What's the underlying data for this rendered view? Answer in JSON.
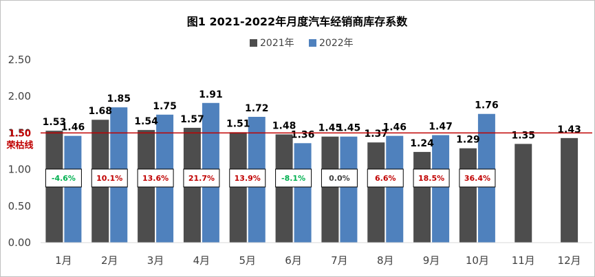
{
  "colors": {
    "series_2021": "#4d4d4d",
    "series_2022": "#4f81bd",
    "reference": "#c00000",
    "positive_change": "#c00000",
    "negative_change": "#00b050",
    "zero_change": "#404040",
    "axis_text": "#404040"
  },
  "chart_data": {
    "type": "bar",
    "title": "图1  2021-2022年月度汽车经销商库存系数",
    "xlabel": "",
    "ylabel": "",
    "categories": [
      "1月",
      "2月",
      "3月",
      "4月",
      "5月",
      "6月",
      "7月",
      "8月",
      "9月",
      "10月",
      "11月",
      "12月"
    ],
    "series": [
      {
        "name": "2021年",
        "values": [
          1.53,
          1.68,
          1.54,
          1.57,
          1.51,
          1.48,
          1.45,
          1.37,
          1.24,
          1.29,
          1.35,
          1.43
        ],
        "labels": [
          "1.53",
          "1.68",
          "1.54",
          "1.57",
          "1.51",
          "1.48",
          "1.45",
          "1.37",
          "1.24",
          "1.29",
          "1.35",
          "1.43"
        ]
      },
      {
        "name": "2022年",
        "values": [
          1.46,
          1.85,
          1.75,
          1.91,
          1.72,
          1.36,
          1.45,
          1.46,
          1.47,
          1.76,
          null,
          null
        ],
        "labels": [
          "1.46",
          "1.85",
          "1.75",
          "1.91",
          "1.72",
          "1.36",
          "1.45",
          "1.46",
          "1.47",
          "1.76",
          "",
          ""
        ]
      }
    ],
    "yoy_change": [
      "-4.6%",
      "10.1%",
      "13.6%",
      "21.7%",
      "13.9%",
      "-8.1%",
      "0.0%",
      "6.6%",
      "18.5%",
      "36.4%"
    ],
    "yoy_change_values": [
      -4.6,
      10.1,
      13.6,
      21.7,
      13.9,
      -8.1,
      0.0,
      6.6,
      18.5,
      36.4
    ],
    "ylim": [
      0,
      2.5
    ],
    "yticks": [
      0,
      0.5,
      1.0,
      1.5,
      2.0,
      2.5
    ],
    "ytick_labels": [
      "0.00",
      "0.50",
      "1.00",
      "1.50",
      "2.00",
      "2.50"
    ],
    "reference_line": {
      "value": 1.5,
      "value_label": "1.50",
      "name": "荣枯线"
    },
    "legend_position": "top-center",
    "grid": false
  }
}
